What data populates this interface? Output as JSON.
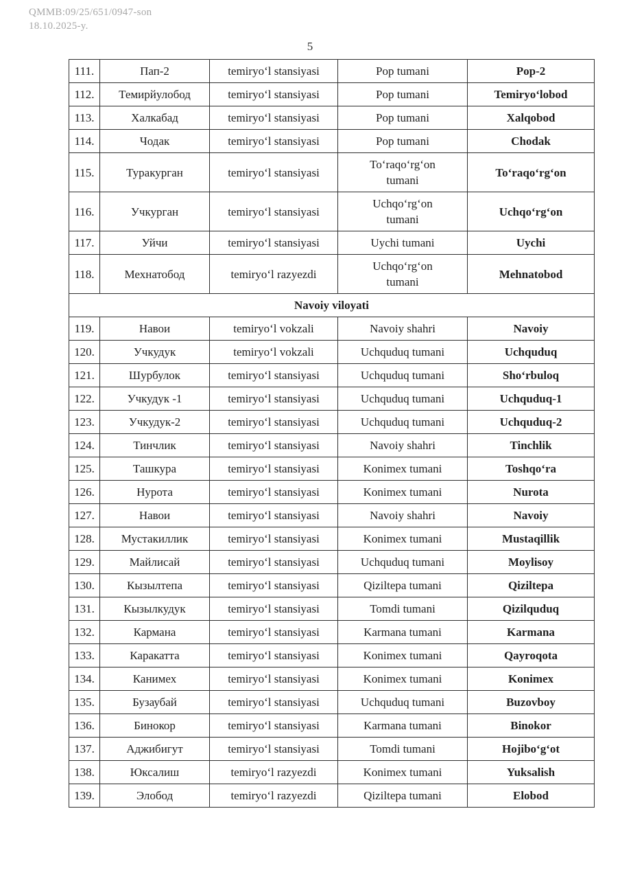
{
  "header": {
    "doc_ref": "QMMB:09/25/651/0947-son",
    "doc_date": "18.10.2025-y.",
    "page_number": "5"
  },
  "table": {
    "sections": [
      {
        "title": "",
        "rows": [
          {
            "num": "111.",
            "old_name": "Пап-2",
            "type": "temiryoʻl stansiyasi",
            "district": "Pop tumani",
            "new_name": "Pop-2"
          },
          {
            "num": "112.",
            "old_name": "Темирйулобод",
            "type": "temiryoʻl stansiyasi",
            "district": "Pop tumani",
            "new_name": "Temiryoʻlobod"
          },
          {
            "num": "113.",
            "old_name": "Халкабад",
            "type": "temiryoʻl stansiyasi",
            "district": "Pop tumani",
            "new_name": "Xalqobod"
          },
          {
            "num": "114.",
            "old_name": "Чодак",
            "type": "temiryoʻl stansiyasi",
            "district": "Pop tumani",
            "new_name": "Chodak"
          },
          {
            "num": "115.",
            "old_name": "Туракурган",
            "type": "temiryoʻl stansiyasi",
            "district": "Toʻraqoʻrgʻon\ntumani",
            "new_name": "Toʻraqoʻrgʻon"
          },
          {
            "num": "116.",
            "old_name": "Учкурган",
            "type": "temiryoʻl stansiyasi",
            "district": "Uchqoʻrgʻon\ntumani",
            "new_name": "Uchqoʻrgʻon"
          },
          {
            "num": "117.",
            "old_name": "Уйчи",
            "type": "temiryoʻl stansiyasi",
            "district": "Uychi tumani",
            "new_name": "Uychi"
          },
          {
            "num": "118.",
            "old_name": "Мехнатобод",
            "type": "temiryoʻl razyezdi",
            "district": "Uchqoʻrgʻon\ntumani",
            "new_name": "Mehnatobod"
          }
        ]
      },
      {
        "title": "Navoiy viloyati",
        "rows": [
          {
            "num": "119.",
            "old_name": "Навои",
            "type": "temiryoʻl vokzali",
            "district": "Navoiy shahri",
            "new_name": "Navoiy"
          },
          {
            "num": "120.",
            "old_name": "Учкудук",
            "type": "temiryoʻl vokzali",
            "district": "Uchquduq tumani",
            "new_name": "Uchquduq"
          },
          {
            "num": "121.",
            "old_name": "Шурбулок",
            "type": "temiryoʻl stansiyasi",
            "district": "Uchquduq tumani",
            "new_name": "Shoʻrbuloq"
          },
          {
            "num": "122.",
            "old_name": "Учкудук -1",
            "type": "temiryoʻl stansiyasi",
            "district": "Uchquduq tumani",
            "new_name": "Uchquduq-1"
          },
          {
            "num": "123.",
            "old_name": "Учкудук-2",
            "type": "temiryoʻl stansiyasi",
            "district": "Uchquduq tumani",
            "new_name": "Uchquduq-2"
          },
          {
            "num": "124.",
            "old_name": "Тинчлик",
            "type": "temiryoʻl stansiyasi",
            "district": "Navoiy shahri",
            "new_name": "Tinchlik"
          },
          {
            "num": "125.",
            "old_name": "Ташкура",
            "type": "temiryoʻl stansiyasi",
            "district": "Konimex tumani",
            "new_name": "Toshqoʻra"
          },
          {
            "num": "126.",
            "old_name": "Нурота",
            "type": "temiryoʻl stansiyasi",
            "district": "Konimex tumani",
            "new_name": "Nurota"
          },
          {
            "num": "127.",
            "old_name": "Навои",
            "type": "temiryoʻl stansiyasi",
            "district": "Navoiy shahri",
            "new_name": "Navoiy"
          },
          {
            "num": "128.",
            "old_name": "Мустакиллик",
            "type": "temiryoʻl stansiyasi",
            "district": "Konimex tumani",
            "new_name": "Mustaqillik"
          },
          {
            "num": "129.",
            "old_name": "Майлисай",
            "type": "temiryoʻl stansiyasi",
            "district": "Uchquduq tumani",
            "new_name": "Moylisoy"
          },
          {
            "num": "130.",
            "old_name": "Кызылтепа",
            "type": "temiryoʻl stansiyasi",
            "district": "Qiziltepa tumani",
            "new_name": "Qiziltepa"
          },
          {
            "num": "131.",
            "old_name": "Кызылкудук",
            "type": "temiryoʻl stansiyasi",
            "district": "Tomdi tumani",
            "new_name": "Qizilquduq"
          },
          {
            "num": "132.",
            "old_name": "Кармана",
            "type": "temiryoʻl stansiyasi",
            "district": "Karmana tumani",
            "new_name": "Karmana"
          },
          {
            "num": "133.",
            "old_name": "Каракатта",
            "type": "temiryoʻl stansiyasi",
            "district": "Konimex tumani",
            "new_name": "Qayroqota"
          },
          {
            "num": "134.",
            "old_name": "Канимех",
            "type": "temiryoʻl stansiyasi",
            "district": "Konimex tumani",
            "new_name": "Konimex"
          },
          {
            "num": "135.",
            "old_name": "Бузаубай",
            "type": "temiryoʻl stansiyasi",
            "district": "Uchquduq tumani",
            "new_name": "Buzovboy"
          },
          {
            "num": "136.",
            "old_name": "Бинокор",
            "type": "temiryoʻl stansiyasi",
            "district": "Karmana tumani",
            "new_name": "Binokor"
          },
          {
            "num": "137.",
            "old_name": "Аджибигут",
            "type": "temiryoʻl stansiyasi",
            "district": "Tomdi tumani",
            "new_name": "Hojiboʻgʻot"
          },
          {
            "num": "138.",
            "old_name": "Юксалиш",
            "type": "temiryoʻl razyezdi",
            "district": "Konimex tumani",
            "new_name": "Yuksalish"
          },
          {
            "num": "139.",
            "old_name": "Элобод",
            "type": "temiryoʻl razyezdi",
            "district": "Qiziltepa tumani",
            "new_name": "Elobod"
          }
        ]
      }
    ]
  }
}
